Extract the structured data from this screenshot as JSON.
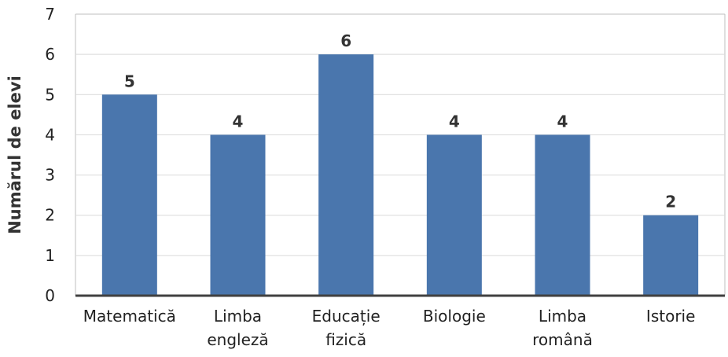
{
  "chart_data": {
    "type": "bar",
    "title": "",
    "xlabel": "",
    "ylabel": "Numărul de elevi",
    "categories": [
      [
        "Matematică"
      ],
      [
        "Limba",
        "engleză"
      ],
      [
        "Educație",
        "fizică"
      ],
      [
        "Biologie"
      ],
      [
        "Limba",
        "română"
      ],
      [
        "Istorie"
      ]
    ],
    "values": [
      5,
      4,
      6,
      4,
      4,
      2
    ],
    "ylim": [
      0,
      7
    ],
    "yticks": [
      0,
      1,
      2,
      3,
      4,
      5,
      6,
      7
    ],
    "grid": true,
    "legend": "none",
    "colors": {
      "bar": "#4a76ad",
      "grid": "#d9d9d9",
      "axis": "#404040",
      "frame": "#bfbfbf"
    }
  }
}
